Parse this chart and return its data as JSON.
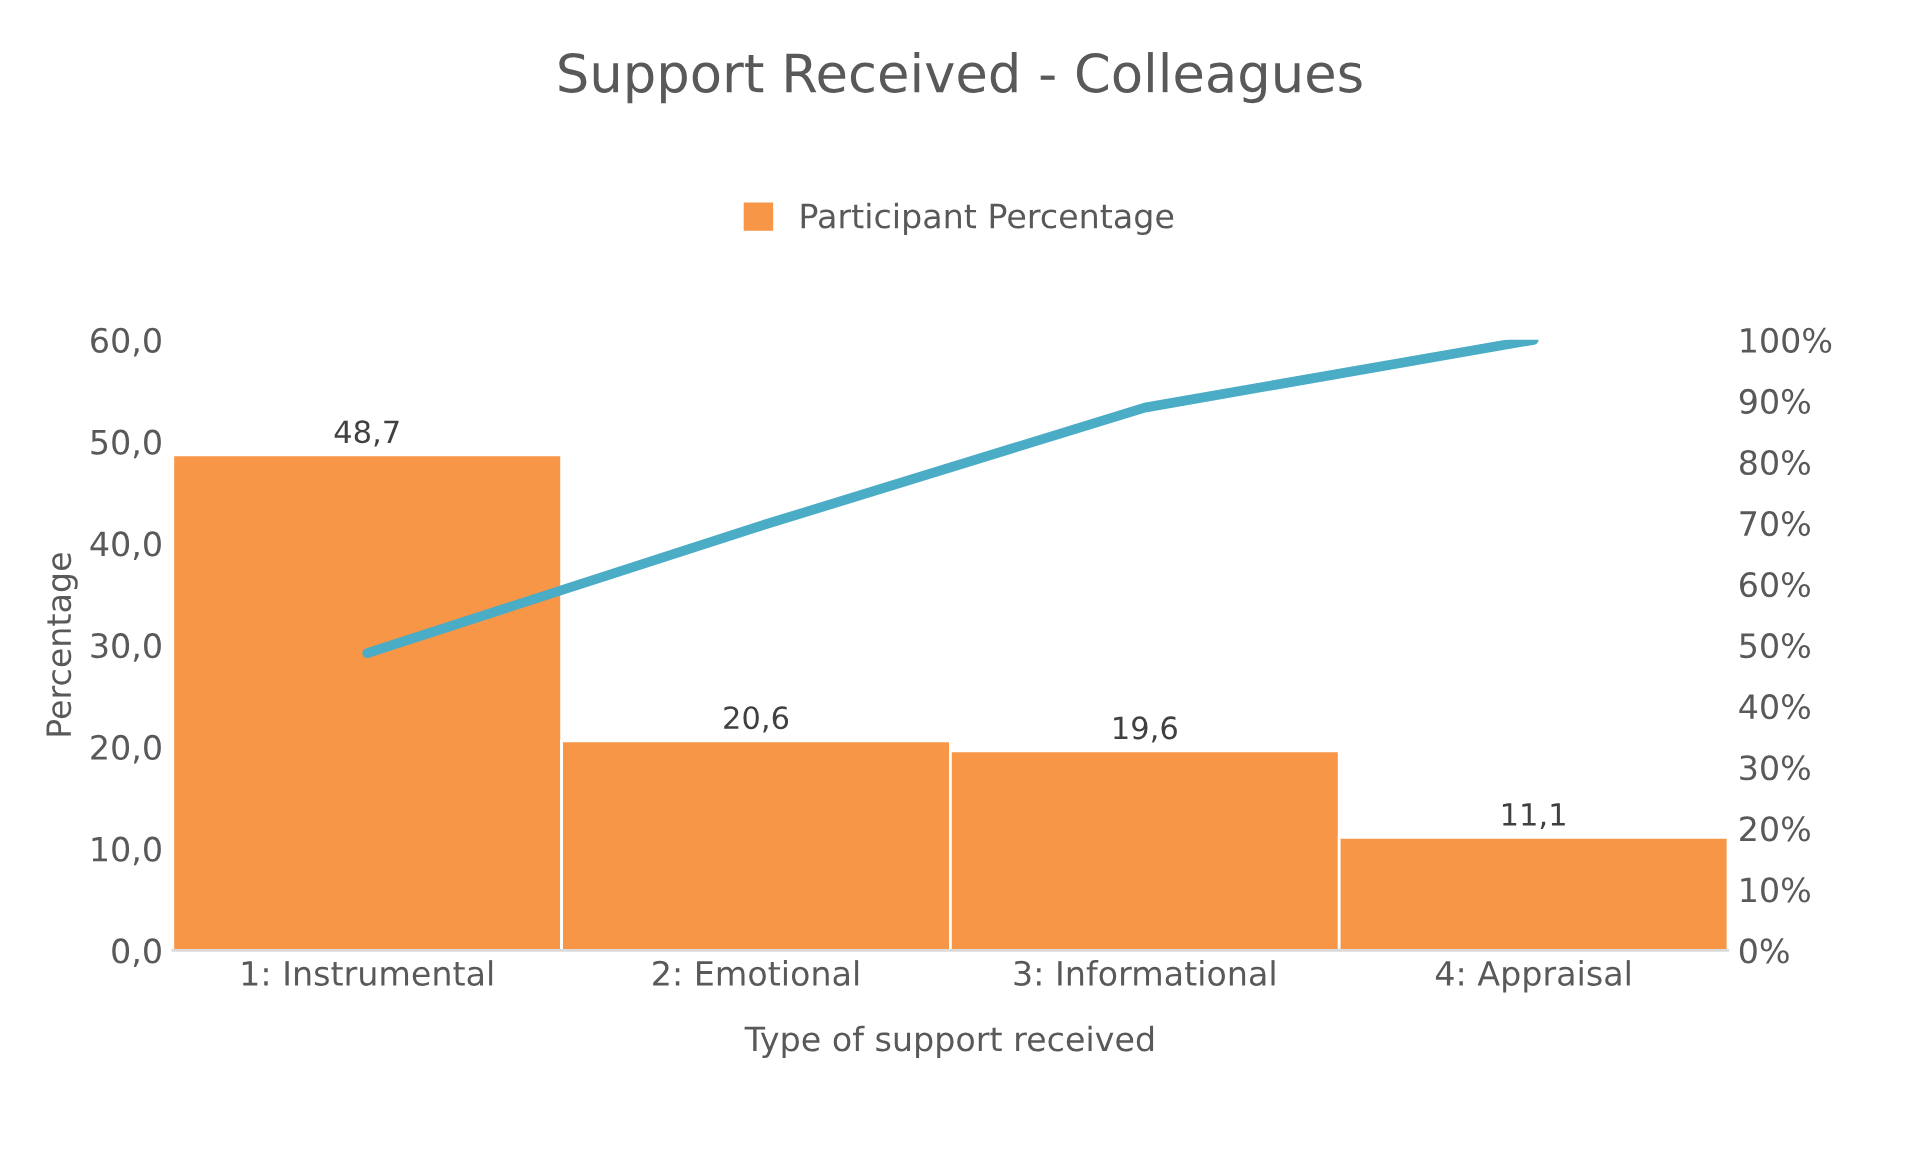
{
  "chart_data": {
    "type": "bar",
    "title": "Support Received - Colleagues",
    "xlabel": "Type of support received",
    "ylabel": "Percentage",
    "categories": [
      "1: Instrumental",
      "2: Emotional",
      "3: Informational",
      "4: Appraisal"
    ],
    "series": [
      {
        "name": "Participant Percentage",
        "color": "#f79646",
        "values": [
          48.7,
          20.6,
          19.6,
          11.1
        ],
        "value_labels": [
          "48,7",
          "20,6",
          "19,6",
          "11,1"
        ]
      },
      {
        "type": "line",
        "axis": "y2",
        "color": "#4bacc6",
        "values": [
          48.7,
          69.3,
          88.9,
          100
        ]
      }
    ],
    "ylim": [
      0,
      60
    ],
    "yticks": [
      {
        "value": 0,
        "label": "0,0"
      },
      {
        "value": 10,
        "label": "10,0"
      },
      {
        "value": 20,
        "label": "20,0"
      },
      {
        "value": 30,
        "label": "30,0"
      },
      {
        "value": 40,
        "label": "40,0"
      },
      {
        "value": 50,
        "label": "50,0"
      },
      {
        "value": 60,
        "label": "60,0"
      }
    ],
    "y2lim": [
      0,
      100
    ],
    "y2ticks": [
      {
        "value": 0,
        "label": "0%"
      },
      {
        "value": 10,
        "label": "10%"
      },
      {
        "value": 20,
        "label": "20%"
      },
      {
        "value": 30,
        "label": "30%"
      },
      {
        "value": 40,
        "label": "40%"
      },
      {
        "value": 50,
        "label": "50%"
      },
      {
        "value": 60,
        "label": "60%"
      },
      {
        "value": 70,
        "label": "70%"
      },
      {
        "value": 80,
        "label": "80%"
      },
      {
        "value": 90,
        "label": "90%"
      },
      {
        "value": 100,
        "label": "100%"
      }
    ],
    "grid": false,
    "legend": "top",
    "marker": "none",
    "line_style": "solid"
  }
}
